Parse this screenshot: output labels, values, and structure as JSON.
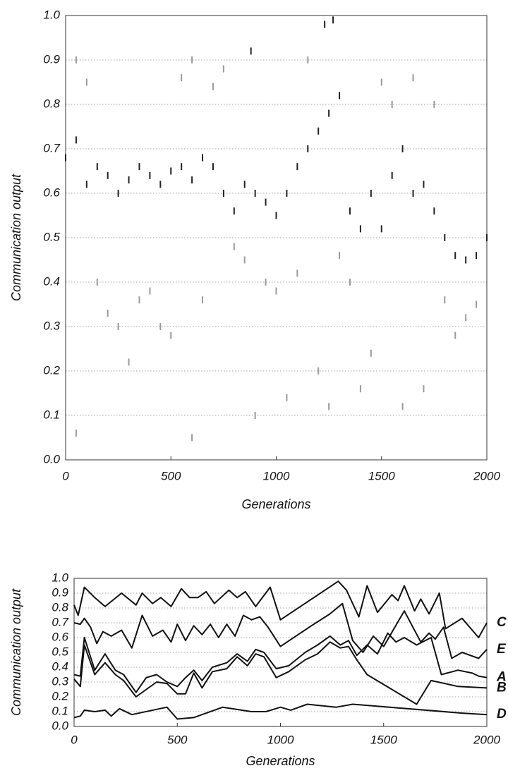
{
  "chart_data": [
    {
      "type": "scatter",
      "y_label": "Communication output",
      "x_label": "Generations",
      "xlim": [
        0,
        2000
      ],
      "xticks": [
        0,
        500,
        1000,
        1500,
        2000
      ],
      "ylim": [
        0,
        1
      ],
      "yticks": [
        {
          "value": 0,
          "label": "0.0"
        },
        0.1,
        0.2,
        0.3,
        0.4,
        0.5,
        0.6,
        0.7,
        0.8,
        0.9,
        {
          "value": 1,
          "label": "1.0"
        }
      ],
      "grid": true,
      "series": [
        {
          "color": "#222222",
          "x": [
            0,
            50,
            100,
            150,
            200,
            250,
            300,
            350,
            400,
            450,
            500,
            550,
            600,
            650,
            700,
            750,
            800,
            850,
            900,
            950,
            1000,
            1050,
            1100,
            1150,
            1200,
            1250,
            1300,
            1350,
            1400,
            1450,
            1500,
            1550,
            1600,
            1650,
            1700,
            1750,
            1800,
            1850,
            1900,
            1950,
            2000,
            880,
            1230,
            1270
          ],
          "values": [
            0.68,
            0.72,
            0.62,
            0.66,
            0.64,
            0.6,
            0.63,
            0.66,
            0.64,
            0.62,
            0.65,
            0.66,
            0.63,
            0.68,
            0.66,
            0.6,
            0.56,
            0.62,
            0.6,
            0.58,
            0.55,
            0.6,
            0.66,
            0.7,
            0.74,
            0.78,
            0.82,
            0.56,
            0.52,
            0.6,
            0.52,
            0.64,
            0.7,
            0.6,
            0.62,
            0.56,
            0.5,
            0.46,
            0.45,
            0.46,
            0.5,
            0.92,
            0.98,
            0.99
          ]
        },
        {
          "color": "#9a9a9a",
          "x": [
            0,
            50,
            100,
            150,
            200,
            250,
            300,
            350,
            400,
            450,
            500,
            550,
            600,
            650,
            700,
            750,
            800,
            850,
            900,
            950,
            1000,
            1050,
            1100,
            1150,
            1200,
            1250,
            1300,
            1350,
            1400,
            1450,
            1500,
            1550,
            1600,
            1650,
            1700,
            1750,
            1800,
            1850,
            1900,
            1950,
            2000,
            50,
            600
          ],
          "values": [
            0.35,
            0.9,
            0.85,
            0.4,
            0.33,
            0.3,
            0.22,
            0.36,
            0.38,
            0.3,
            0.28,
            0.86,
            0.9,
            0.36,
            0.84,
            0.88,
            0.48,
            0.45,
            0.1,
            0.4,
            0.38,
            0.14,
            0.42,
            0.9,
            0.2,
            0.12,
            0.46,
            0.4,
            0.16,
            0.24,
            0.85,
            0.8,
            0.12,
            0.86,
            0.16,
            0.8,
            0.36,
            0.28,
            0.32,
            0.35,
            0.3,
            0.06,
            0.05
          ]
        }
      ]
    },
    {
      "type": "line",
      "y_label": "Communication output",
      "x_label": "Generations",
      "xlim": [
        0,
        2000
      ],
      "xticks": [
        0,
        500,
        1000,
        1500,
        2000
      ],
      "ylim": [
        0,
        1
      ],
      "yticks": [
        {
          "value": 0,
          "label": "0.0"
        },
        0.1,
        0.2,
        0.3,
        0.4,
        0.5,
        0.6,
        0.7,
        0.8,
        0.9,
        {
          "value": 1,
          "label": "1.0"
        }
      ],
      "grid": true,
      "series": [
        {
          "name": "C",
          "color": "#111111",
          "x": [
            0,
            20,
            50,
            100,
            150,
            230,
            300,
            330,
            380,
            420,
            470,
            520,
            560,
            600,
            640,
            680,
            750,
            790,
            830,
            880,
            950,
            1000,
            1280,
            1320,
            1380,
            1420,
            1470,
            1540,
            1570,
            1600,
            1650,
            1680,
            1720,
            1770,
            1800,
            1880,
            1960,
            2000
          ],
          "values": [
            0.82,
            0.75,
            0.94,
            0.87,
            0.81,
            0.9,
            0.82,
            0.9,
            0.83,
            0.87,
            0.81,
            0.93,
            0.87,
            0.87,
            0.91,
            0.83,
            0.92,
            0.87,
            0.91,
            0.81,
            0.94,
            0.72,
            0.98,
            0.92,
            0.74,
            0.95,
            0.77,
            0.89,
            0.85,
            0.95,
            0.78,
            0.86,
            0.76,
            0.9,
            0.66,
            0.73,
            0.6,
            0.7
          ]
        },
        {
          "name": "E",
          "color": "#111111",
          "x": [
            0,
            30,
            50,
            80,
            110,
            140,
            180,
            230,
            280,
            330,
            380,
            430,
            470,
            500,
            540,
            580,
            620,
            660,
            700,
            740,
            780,
            820,
            860,
            900,
            940,
            1000,
            1150,
            1240,
            1300,
            1350,
            1400,
            1450,
            1500,
            1600,
            1680,
            1720,
            1750,
            1790,
            1830,
            1880,
            1960,
            2000
          ],
          "values": [
            0.7,
            0.69,
            0.73,
            0.67,
            0.56,
            0.64,
            0.61,
            0.65,
            0.53,
            0.75,
            0.61,
            0.65,
            0.57,
            0.69,
            0.58,
            0.68,
            0.62,
            0.69,
            0.6,
            0.69,
            0.61,
            0.75,
            0.72,
            0.74,
            0.67,
            0.54,
            0.68,
            0.76,
            0.83,
            0.58,
            0.5,
            0.61,
            0.54,
            0.78,
            0.57,
            0.63,
            0.59,
            0.67,
            0.46,
            0.5,
            0.46,
            0.52
          ]
        },
        {
          "name": "A",
          "color": "#111111",
          "x": [
            0,
            30,
            50,
            100,
            150,
            200,
            240,
            300,
            350,
            400,
            450,
            500,
            540,
            580,
            620,
            670,
            740,
            790,
            840,
            880,
            920,
            980,
            1040,
            1120,
            1180,
            1240,
            1290,
            1330,
            1370,
            1420,
            1470,
            1520,
            1560,
            1600,
            1660,
            1730,
            1780,
            1860,
            1930,
            1960,
            2000
          ],
          "values": [
            0.35,
            0.34,
            0.6,
            0.38,
            0.49,
            0.38,
            0.35,
            0.23,
            0.33,
            0.35,
            0.3,
            0.27,
            0.33,
            0.38,
            0.31,
            0.4,
            0.43,
            0.49,
            0.44,
            0.52,
            0.5,
            0.39,
            0.41,
            0.5,
            0.55,
            0.61,
            0.55,
            0.58,
            0.48,
            0.55,
            0.49,
            0.63,
            0.57,
            0.6,
            0.55,
            0.6,
            0.35,
            0.38,
            0.36,
            0.34,
            0.33
          ]
        },
        {
          "name": "B",
          "color": "#111111",
          "x": [
            0,
            30,
            50,
            100,
            150,
            200,
            240,
            300,
            350,
            400,
            450,
            500,
            540,
            580,
            620,
            670,
            740,
            790,
            840,
            880,
            920,
            980,
            1040,
            1120,
            1180,
            1240,
            1290,
            1330,
            1370,
            1420,
            1660,
            1730,
            1860,
            2000
          ],
          "values": [
            0.32,
            0.27,
            0.55,
            0.35,
            0.43,
            0.35,
            0.31,
            0.2,
            0.25,
            0.3,
            0.29,
            0.22,
            0.22,
            0.36,
            0.26,
            0.37,
            0.39,
            0.47,
            0.41,
            0.49,
            0.47,
            0.33,
            0.37,
            0.45,
            0.49,
            0.57,
            0.53,
            0.54,
            0.45,
            0.35,
            0.15,
            0.31,
            0.27,
            0.26
          ]
        },
        {
          "name": "D",
          "color": "#111111",
          "x": [
            0,
            30,
            50,
            100,
            150,
            180,
            220,
            280,
            450,
            500,
            580,
            720,
            860,
            930,
            1000,
            1050,
            1130,
            1270,
            1350,
            1880,
            2000
          ],
          "values": [
            0.06,
            0.07,
            0.11,
            0.1,
            0.11,
            0.07,
            0.12,
            0.08,
            0.13,
            0.05,
            0.06,
            0.13,
            0.1,
            0.1,
            0.13,
            0.11,
            0.15,
            0.13,
            0.15,
            0.09,
            0.08
          ]
        }
      ]
    }
  ]
}
